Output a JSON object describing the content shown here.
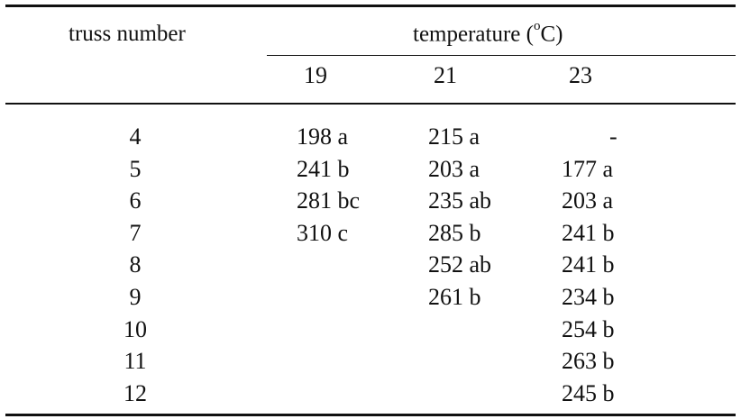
{
  "table": {
    "header": {
      "truss_label": "truss number",
      "temperature_label": "temperature (",
      "temperature_sup": "o",
      "temperature_unit": "C)",
      "columns": [
        "19",
        "21",
        "23"
      ]
    },
    "rows": [
      {
        "truss": "4",
        "c19": "198 a",
        "c21": "215 a",
        "c23": "-"
      },
      {
        "truss": "5",
        "c19": "241 b",
        "c21": "203 a",
        "c23": "177 a"
      },
      {
        "truss": "6",
        "c19": "281 bc",
        "c21": "235 ab",
        "c23": "203 a"
      },
      {
        "truss": "7",
        "c19": "310 c",
        "c21": "285 b",
        "c23": "241 b"
      },
      {
        "truss": "8",
        "c19": "",
        "c21": "252 ab",
        "c23": "241 b"
      },
      {
        "truss": "9",
        "c19": "",
        "c21": "261 b",
        "c23": "234 b"
      },
      {
        "truss": "10",
        "c19": "",
        "c21": "",
        "c23": "254 b"
      },
      {
        "truss": "11",
        "c19": "",
        "c21": "",
        "c23": "263 b"
      },
      {
        "truss": "12",
        "c19": "",
        "c21": "",
        "c23": "245 b"
      }
    ]
  }
}
